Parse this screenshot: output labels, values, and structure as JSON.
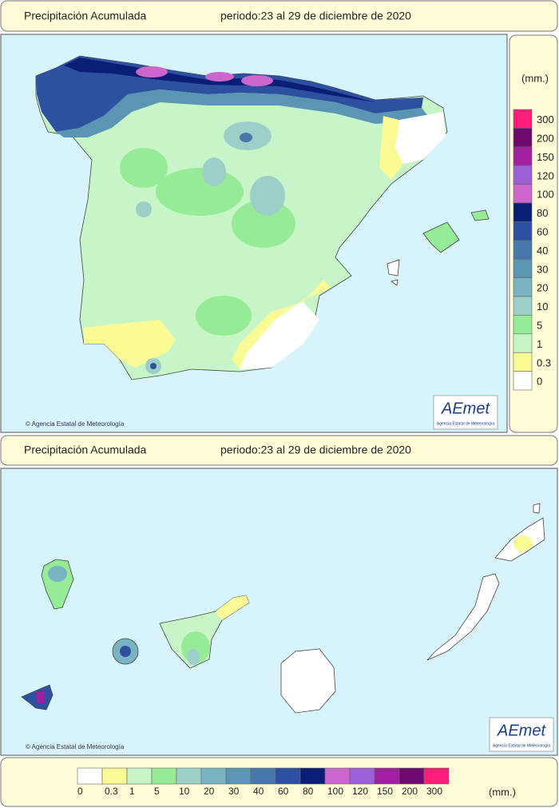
{
  "peninsula": {
    "header": {
      "title": "Precipitación Acumulada",
      "period": "periodo:23 al 29 de diciembre de 2020"
    },
    "credit": "© Agencia Estatal de Meteorología",
    "logo": {
      "name": "AEmet",
      "subtitle": "Agencia Estatal de Meteorología"
    }
  },
  "side_legend": {
    "unit": "(mm.)",
    "items": [
      {
        "label": "300",
        "color": "#ff1e78"
      },
      {
        "label": "200",
        "color": "#6e0a6e"
      },
      {
        "label": "150",
        "color": "#a020a0"
      },
      {
        "label": "120",
        "color": "#9b5fd6"
      },
      {
        "label": "100",
        "color": "#cc66cc"
      },
      {
        "label": "80",
        "color": "#0a1e78"
      },
      {
        "label": "60",
        "color": "#2d50a0"
      },
      {
        "label": "40",
        "color": "#4678aa"
      },
      {
        "label": "30",
        "color": "#5a96b4"
      },
      {
        "label": "20",
        "color": "#78b4c3"
      },
      {
        "label": "10",
        "color": "#9ccfc8"
      },
      {
        "label": "5",
        "color": "#96eb96"
      },
      {
        "label": "1",
        "color": "#c8f5c8"
      },
      {
        "label": "0.3",
        "color": "#fbfb96"
      },
      {
        "label": "0",
        "color": "#ffffff"
      }
    ]
  },
  "canarias": {
    "header": {
      "title": "Precipitación Acumulada",
      "period": "periodo:23 al 29 de diciembre de 2020"
    },
    "credit": "© Agencia Estatal de Meteorología",
    "logo": {
      "name": "AEmet",
      "subtitle": "Agencia Estatal de Meteorología"
    }
  },
  "bottom_legend": {
    "unit": "(mm.)",
    "items": [
      {
        "label": "0",
        "color": "#ffffff"
      },
      {
        "label": "0.3",
        "color": "#fbfb96"
      },
      {
        "label": "1",
        "color": "#c8f5c8"
      },
      {
        "label": "5",
        "color": "#96eb96"
      },
      {
        "label": "10",
        "color": "#9ccfc8"
      },
      {
        "label": "20",
        "color": "#78b4c3"
      },
      {
        "label": "30",
        "color": "#5a96b4"
      },
      {
        "label": "40",
        "color": "#4678aa"
      },
      {
        "label": "60",
        "color": "#2d50a0"
      },
      {
        "label": "80",
        "color": "#0a1e78"
      },
      {
        "label": "100",
        "color": "#cc66cc"
      },
      {
        "label": "120",
        "color": "#9b5fd6"
      },
      {
        "label": "150",
        "color": "#a020a0"
      },
      {
        "label": "200",
        "color": "#6e0a6e"
      },
      {
        "label": "300",
        "color": "#ff1e78"
      }
    ]
  }
}
